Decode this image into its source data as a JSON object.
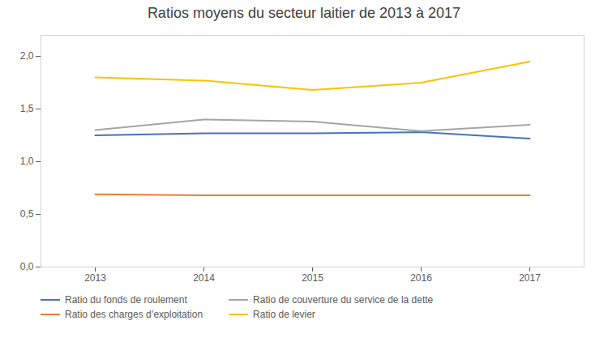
{
  "chart_data": {
    "type": "line",
    "title": "Ratios moyens du secteur laitier de 2013 à 2017",
    "x": [
      2013,
      2014,
      2015,
      2016,
      2017
    ],
    "series": [
      {
        "name": "Ratio du fonds de roulement",
        "color": "#4472C4",
        "values": [
          1.25,
          1.27,
          1.27,
          1.28,
          1.22
        ]
      },
      {
        "name": "Ratio de couverture du service de la dette",
        "color": "#A5A5A5",
        "values": [
          1.3,
          1.4,
          1.38,
          1.29,
          1.35
        ]
      },
      {
        "name": "Ratio des charges d’exploitation",
        "color": "#ED7D31",
        "values": [
          0.69,
          0.68,
          0.68,
          0.68,
          0.68
        ]
      },
      {
        "name": "Ratio de levier",
        "color": "#FFC000",
        "values": [
          1.8,
          1.77,
          1.68,
          1.75,
          1.95
        ]
      }
    ],
    "xlim": [
      2012.5,
      2017.5
    ],
    "xticks": [
      2013,
      2014,
      2015,
      2016,
      2017
    ],
    "ylim": [
      0.0,
      2.2
    ],
    "yticks": [
      {
        "value": 0.0,
        "label": "0,0"
      },
      {
        "value": 0.5,
        "label": "0,5"
      },
      {
        "value": 1.0,
        "label": "1,0"
      },
      {
        "value": 1.5,
        "label": "1,5"
      },
      {
        "value": 2.0,
        "label": "2,0"
      }
    ],
    "grid": false,
    "legend": "bottom"
  }
}
